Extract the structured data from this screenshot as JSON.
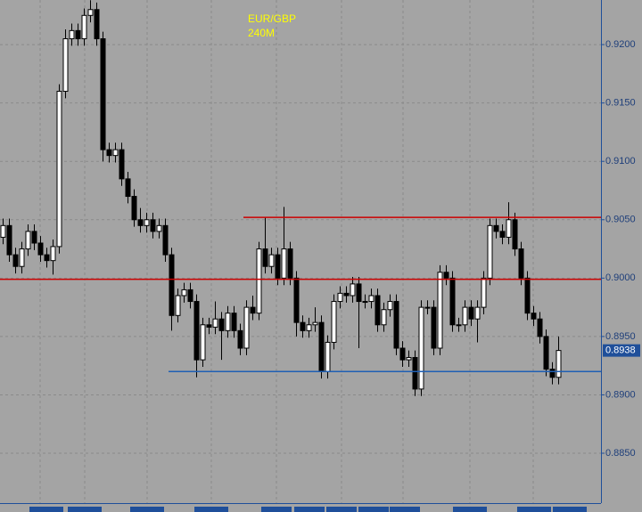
{
  "chart_data": {
    "type": "candlestick",
    "title": "EUR/GBP",
    "subtitle": "240M",
    "open": [
      0.9035,
      0.9045,
      0.902,
      0.901,
      0.9025,
      0.904,
      0.903,
      0.902,
      0.9015,
      0.9027,
      0.916,
      0.9205,
      0.9212,
      0.9205,
      0.9225,
      0.923,
      0.9205,
      0.911,
      0.9105,
      0.911,
      0.9085,
      0.907,
      0.905,
      0.9045,
      0.905,
      0.904,
      0.9045,
      0.902,
      0.8968,
      0.8985,
      0.899,
      0.898,
      0.893,
      0.896,
      0.8958,
      0.8965,
      0.8955,
      0.897,
      0.8955,
      0.894,
      0.8975,
      0.897,
      0.9025,
      0.901,
      0.902,
      0.9,
      0.9025,
      0.9,
      0.8962,
      0.8955,
      0.896,
      0.8962,
      0.892,
      0.8945,
      0.898,
      0.8987,
      0.8985,
      0.8995,
      0.898,
      0.898,
      0.8985,
      0.896,
      0.8973,
      0.898,
      0.894,
      0.893,
      0.8932,
      0.8905,
      0.8975,
      0.8975,
      0.894,
      0.9005,
      0.9,
      0.896,
      0.896,
      0.8975,
      0.8965,
      0.8975,
      0.9,
      0.9045,
      0.904,
      0.9035,
      0.905,
      0.9025,
      0.9,
      0.897,
      0.8965,
      0.895,
      0.8922,
      0.8915
    ],
    "high": [
      0.9051,
      0.9051,
      0.9026,
      0.9031,
      0.9046,
      0.9046,
      0.9036,
      0.9026,
      0.9033,
      0.9166,
      0.9213,
      0.9218,
      0.9218,
      0.9231,
      0.9238,
      0.9236,
      0.9211,
      0.9116,
      0.9116,
      0.9116,
      0.9091,
      0.9076,
      0.906,
      0.9056,
      0.9056,
      0.9051,
      0.9051,
      0.9026,
      0.8991,
      0.8996,
      0.8996,
      0.8986,
      0.8966,
      0.8966,
      0.898,
      0.8971,
      0.8976,
      0.8976,
      0.8961,
      0.8981,
      0.8985,
      0.9031,
      0.9052,
      0.9026,
      0.9026,
      0.9061,
      0.9031,
      0.9006,
      0.8968,
      0.8966,
      0.8975,
      0.8968,
      0.8951,
      0.8986,
      0.8993,
      0.8993,
      0.9001,
      0.9001,
      0.8986,
      0.8991,
      0.8991,
      0.8979,
      0.8986,
      0.8986,
      0.8946,
      0.8938,
      0.8938,
      0.8981,
      0.8981,
      0.8981,
      0.9011,
      0.9011,
      0.9006,
      0.8966,
      0.8981,
      0.8981,
      0.8981,
      0.9006,
      0.9051,
      0.9051,
      0.9046,
      0.9065,
      0.9056,
      0.9031,
      0.9006,
      0.8976,
      0.8971,
      0.8956,
      0.8928,
      0.895
    ],
    "low": [
      0.9029,
      0.9014,
      0.9004,
      0.9004,
      0.9019,
      0.9024,
      0.9014,
      0.9009,
      0.9003,
      0.9021,
      0.9154,
      0.9199,
      0.9199,
      0.9199,
      0.9219,
      0.9199,
      0.91,
      0.9099,
      0.9099,
      0.9079,
      0.9064,
      0.9044,
      0.9039,
      0.9039,
      0.9034,
      0.9034,
      0.9014,
      0.8955,
      0.8962,
      0.8979,
      0.8974,
      0.8915,
      0.8924,
      0.8952,
      0.8952,
      0.893,
      0.8949,
      0.8949,
      0.8934,
      0.8934,
      0.8964,
      0.8964,
      0.9004,
      0.9004,
      0.8994,
      0.8994,
      0.8994,
      0.895,
      0.8949,
      0.8949,
      0.8954,
      0.8914,
      0.8914,
      0.8939,
      0.8974,
      0.8979,
      0.8979,
      0.894,
      0.8974,
      0.8974,
      0.8954,
      0.8954,
      0.8967,
      0.8934,
      0.8924,
      0.8924,
      0.8899,
      0.8899,
      0.8969,
      0.8934,
      0.8934,
      0.8994,
      0.8954,
      0.8954,
      0.8954,
      0.8959,
      0.8945,
      0.8969,
      0.8994,
      0.9034,
      0.9029,
      0.9029,
      0.9019,
      0.8994,
      0.8964,
      0.8959,
      0.8944,
      0.8916,
      0.8909,
      0.8909
    ],
    "close": [
      0.9045,
      0.902,
      0.901,
      0.9025,
      0.904,
      0.903,
      0.902,
      0.9015,
      0.9027,
      0.916,
      0.9205,
      0.9212,
      0.9205,
      0.9225,
      0.923,
      0.9205,
      0.911,
      0.9105,
      0.911,
      0.9085,
      0.907,
      0.905,
      0.9045,
      0.905,
      0.904,
      0.9045,
      0.902,
      0.8968,
      0.8985,
      0.899,
      0.898,
      0.893,
      0.896,
      0.8958,
      0.8965,
      0.8955,
      0.897,
      0.8955,
      0.894,
      0.8975,
      0.897,
      0.9025,
      0.901,
      0.902,
      0.9,
      0.9025,
      0.9,
      0.8962,
      0.8955,
      0.896,
      0.8962,
      0.892,
      0.8945,
      0.898,
      0.8987,
      0.8985,
      0.8995,
      0.898,
      0.898,
      0.8985,
      0.896,
      0.8973,
      0.898,
      0.894,
      0.893,
      0.8932,
      0.8905,
      0.8975,
      0.8975,
      0.894,
      0.9005,
      0.9,
      0.896,
      0.896,
      0.8975,
      0.8965,
      0.8975,
      0.9,
      0.9045,
      0.904,
      0.9035,
      0.905,
      0.9025,
      0.9,
      0.897,
      0.8965,
      0.895,
      0.8922,
      0.8915,
      0.8938
    ],
    "ylim": [
      0.88073,
      0.92382
    ],
    "yticks": [
      {
        "value": 0.885,
        "label": "0.8850"
      },
      {
        "value": 0.89,
        "label": "0.8900"
      },
      {
        "value": 0.895,
        "label": "0.8950"
      },
      {
        "value": 0.9,
        "label": "0.9000"
      },
      {
        "value": 0.905,
        "label": "0.9050"
      },
      {
        "value": 0.91,
        "label": "0.9100"
      },
      {
        "value": 0.915,
        "label": "0.9150"
      },
      {
        "value": 0.92,
        "label": "0.9200"
      }
    ],
    "grid": true,
    "levels": [
      {
        "value": 0.9052,
        "color": "#cc0000",
        "from": 39
      },
      {
        "value": 0.8999,
        "color": "#cc0000",
        "from": 0
      },
      {
        "value": 0.892,
        "color": "#1f5fb4",
        "from": 27
      }
    ]
  }
}
